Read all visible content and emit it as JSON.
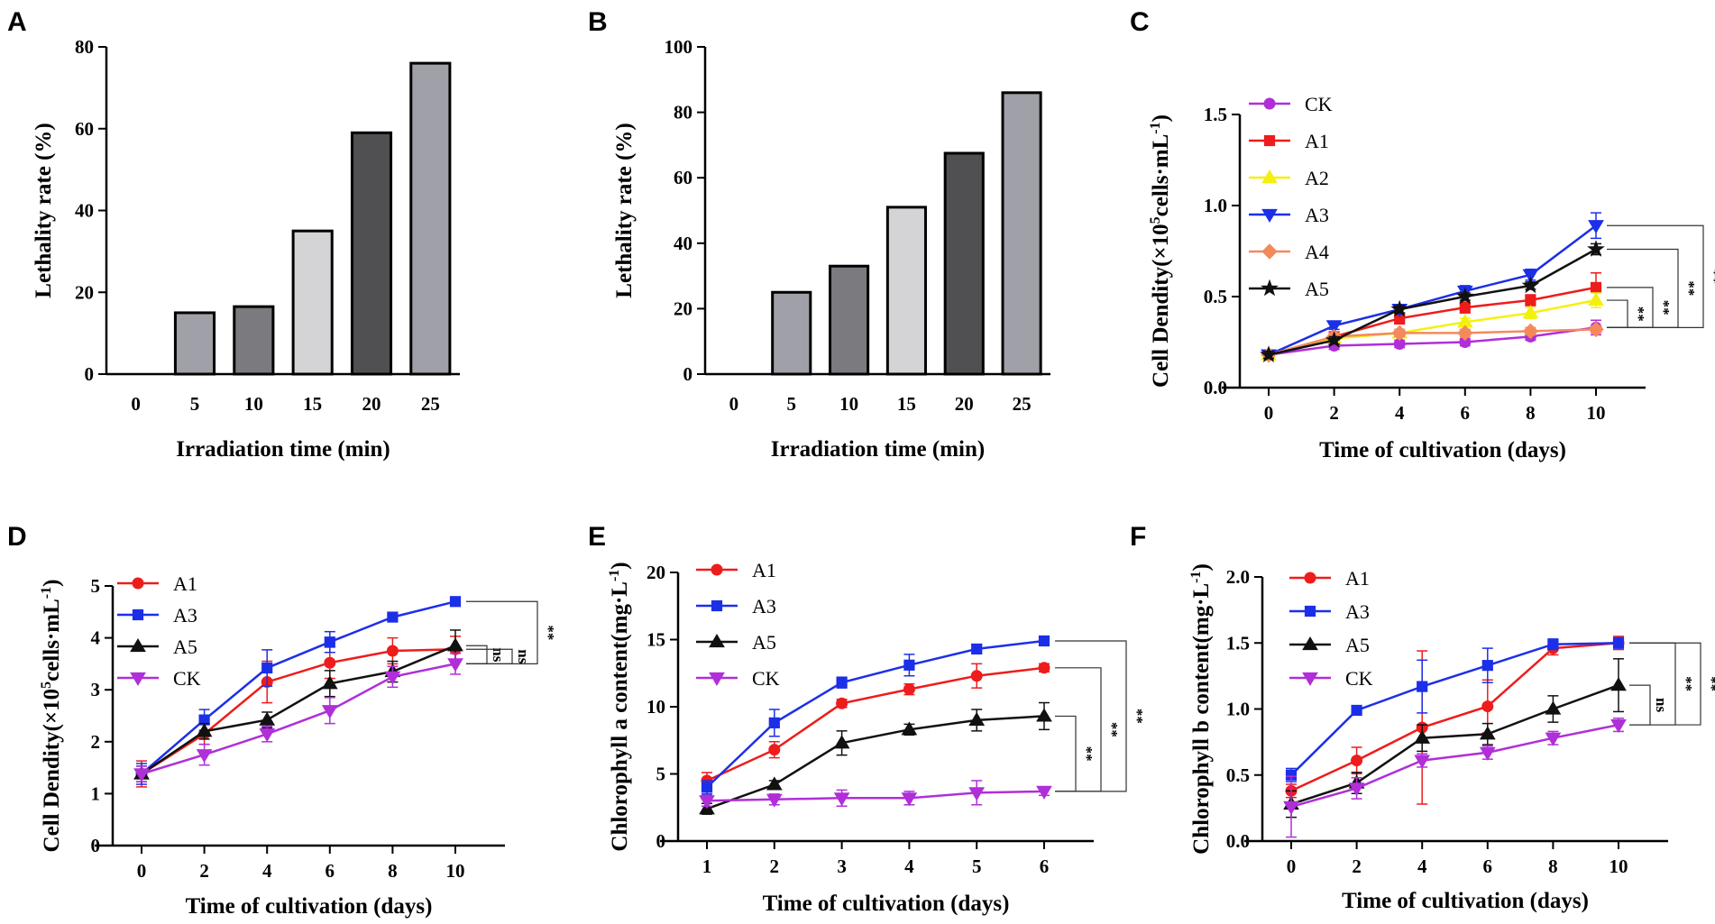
{
  "figure": {
    "panel_letters": [
      "A",
      "B",
      "C",
      "D",
      "E",
      "F"
    ]
  },
  "chart_data": [
    {
      "panel": "A",
      "type": "bar",
      "xlabel": "Irradiation time (min)",
      "ylabel": "Lethality rate (%)",
      "categories": [
        "0",
        "5",
        "10",
        "15",
        "20",
        "25"
      ],
      "values": [
        0,
        15,
        16.5,
        35,
        59,
        76
      ],
      "bar_colors": [
        "#a0a0a8",
        "#a0a0a8",
        "#7a7a7f",
        "#d4d4d6",
        "#505053",
        "#a0a0a8"
      ],
      "ylim": [
        0,
        80
      ],
      "yticks": [
        0,
        20,
        40,
        60,
        80
      ],
      "ytick_labels": [
        "0",
        "20",
        "40",
        "60",
        "80"
      ]
    },
    {
      "panel": "B",
      "type": "bar",
      "xlabel": "Irradiation time (min)",
      "ylabel": "Lethality rate (%)",
      "categories": [
        "0",
        "5",
        "10",
        "15",
        "20",
        "25"
      ],
      "values": [
        0,
        25,
        33,
        51,
        67.5,
        86
      ],
      "bar_colors": [
        "#a0a0a8",
        "#a0a0a8",
        "#7a7a7f",
        "#d4d4d6",
        "#505053",
        "#a0a0a8"
      ],
      "ylim": [
        0,
        100
      ],
      "yticks": [
        0,
        20,
        40,
        60,
        80,
        100
      ],
      "ytick_labels": [
        "0",
        "20",
        "40",
        "60",
        "80",
        "100"
      ]
    },
    {
      "panel": "C",
      "type": "line",
      "xlabel": "Time of cultivation (days)",
      "ylabel_prefix": "Cell Dendity(×10",
      "ylabel_exp": "5",
      "ylabel_mid": "cells·mL",
      "ylabel_exp2": "-1",
      "ylabel_suffix": ")",
      "x": [
        0,
        2,
        4,
        6,
        8,
        10
      ],
      "xlim": [
        0,
        10
      ],
      "xtick_labels": [
        "0",
        "2",
        "4",
        "6",
        "8",
        "10"
      ],
      "ylim": [
        0,
        1.5
      ],
      "yticks": [
        0,
        0.5,
        1.0,
        1.5
      ],
      "ytick_labels": [
        "0.0",
        "0.5",
        "1.0",
        "1.5"
      ],
      "series": [
        {
          "name": "CK",
          "color": "#b02fd8",
          "marker": "circle",
          "values": [
            0.18,
            0.23,
            0.24,
            0.25,
            0.28,
            0.33
          ],
          "errors": [
            0.02,
            0.02,
            0.02,
            0.02,
            0.02,
            0.04
          ]
        },
        {
          "name": "A1",
          "color": "#ee1c1c",
          "marker": "square",
          "values": [
            0.18,
            0.28,
            0.38,
            0.44,
            0.48,
            0.55
          ],
          "errors": [
            0.02,
            0.02,
            0.03,
            0.03,
            0.03,
            0.08
          ]
        },
        {
          "name": "A2",
          "color": "#f4f00e",
          "marker": "triangle-up",
          "values": [
            0.18,
            0.27,
            0.3,
            0.36,
            0.41,
            0.48
          ],
          "errors": [
            0.02,
            0.02,
            0.02,
            0.02,
            0.03,
            0.04
          ]
        },
        {
          "name": "A3",
          "color": "#1c2fe8",
          "marker": "triangle-down",
          "values": [
            0.18,
            0.34,
            0.43,
            0.53,
            0.62,
            0.89
          ],
          "errors": [
            0.02,
            0.02,
            0.02,
            0.03,
            0.03,
            0.07
          ]
        },
        {
          "name": "A4",
          "color": "#f4895c",
          "marker": "diamond",
          "values": [
            0.18,
            0.28,
            0.3,
            0.3,
            0.31,
            0.32
          ],
          "errors": [
            0.02,
            0.02,
            0.02,
            0.02,
            0.02,
            0.02
          ]
        },
        {
          "name": "A5",
          "color": "#111111",
          "marker": "star",
          "values": [
            0.18,
            0.26,
            0.43,
            0.5,
            0.56,
            0.76
          ],
          "errors": [
            0.02,
            0.02,
            0.02,
            0.02,
            0.02,
            0.03
          ]
        }
      ],
      "significance": [
        {
          "label": "**",
          "top_series": "A2",
          "bottom_series": "CK"
        },
        {
          "label": "**",
          "top_series": "A1",
          "bottom_series": "CK"
        },
        {
          "label": "**",
          "top_series": "A5",
          "bottom_series": "CK"
        },
        {
          "label": "**",
          "top_series": "A3",
          "bottom_series": "CK"
        }
      ]
    },
    {
      "panel": "D",
      "type": "line",
      "xlabel": "Time of cultivation (days)",
      "ylabel_prefix": "Cell Dendity(×10",
      "ylabel_exp": "5",
      "ylabel_mid": "cells·mL",
      "ylabel_exp2": "-1",
      "ylabel_suffix": ")",
      "x": [
        0,
        2,
        4,
        6,
        8,
        10
      ],
      "xlim": [
        0,
        10
      ],
      "xtick_labels": [
        "0",
        "2",
        "4",
        "6",
        "8",
        "10"
      ],
      "ylim": [
        0,
        5
      ],
      "yticks": [
        0,
        1,
        2,
        3,
        4,
        5
      ],
      "ytick_labels": [
        "0",
        "1",
        "2",
        "3",
        "4",
        "5"
      ],
      "series": [
        {
          "name": "A1",
          "color": "#ee1c1c",
          "marker": "circle",
          "values": [
            1.38,
            2.15,
            3.15,
            3.52,
            3.75,
            3.78
          ],
          "errors": [
            0.25,
            0.2,
            0.4,
            0.3,
            0.25,
            0.25
          ]
        },
        {
          "name": "A3",
          "color": "#1c2fe8",
          "marker": "square",
          "values": [
            1.38,
            2.42,
            3.42,
            3.92,
            4.4,
            4.7
          ],
          "errors": [
            0.2,
            0.2,
            0.35,
            0.2,
            0.05,
            0.05
          ]
        },
        {
          "name": "A5",
          "color": "#111111",
          "marker": "triangle-up",
          "values": [
            1.38,
            2.2,
            2.42,
            3.12,
            3.35,
            3.85
          ],
          "errors": [
            0.15,
            0.15,
            0.15,
            0.25,
            0.2,
            0.3
          ]
        },
        {
          "name": "CK",
          "color": "#b02fd8",
          "marker": "triangle-down",
          "values": [
            1.38,
            1.75,
            2.15,
            2.6,
            3.25,
            3.5
          ],
          "errors": [
            0.15,
            0.2,
            0.15,
            0.25,
            0.2,
            0.2
          ]
        }
      ],
      "significance": [
        {
          "label": "ns",
          "top_series": "A5",
          "bottom_series": "CK"
        },
        {
          "label": "ns",
          "top_series": "A1",
          "bottom_series": "CK"
        },
        {
          "label": "**",
          "top_series": "A3",
          "bottom_series": "CK"
        }
      ]
    },
    {
      "panel": "E",
      "type": "line",
      "xlabel": "Time of cultivation (days)",
      "ylabel_prefix": "Chlorophyll a content(mg·L",
      "ylabel_exp": "-1",
      "ylabel_suffix": ")",
      "x": [
        1,
        2,
        3,
        4,
        5,
        6
      ],
      "xlim": [
        1,
        6
      ],
      "xtick_labels": [
        "1",
        "2",
        "3",
        "4",
        "5",
        "6"
      ],
      "ylim": [
        0,
        20
      ],
      "yticks": [
        0,
        5,
        10,
        15,
        20
      ],
      "ytick_labels": [
        "0",
        "5",
        "10",
        "15",
        "20"
      ],
      "series": [
        {
          "name": "A1",
          "color": "#ee1c1c",
          "marker": "circle",
          "values": [
            4.5,
            6.8,
            10.25,
            11.3,
            12.3,
            12.9
          ],
          "errors": [
            0.6,
            0.6,
            0.3,
            0.4,
            0.9,
            0.3
          ]
        },
        {
          "name": "A3",
          "color": "#1c2fe8",
          "marker": "square",
          "values": [
            4.0,
            8.8,
            11.8,
            13.1,
            14.3,
            14.9
          ],
          "errors": [
            0.5,
            1.0,
            0.4,
            0.8,
            0.3,
            0.2
          ]
        },
        {
          "name": "A5",
          "color": "#111111",
          "marker": "triangle-up",
          "values": [
            2.4,
            4.2,
            7.3,
            8.3,
            9.0,
            9.3
          ],
          "errors": [
            0.4,
            0.3,
            0.9,
            0.4,
            0.8,
            1.0
          ]
        },
        {
          "name": "CK",
          "color": "#b02fd8",
          "marker": "triangle-down",
          "values": [
            3.0,
            3.1,
            3.2,
            3.2,
            3.6,
            3.7
          ],
          "errors": [
            0.4,
            0.4,
            0.6,
            0.5,
            0.9,
            0.3
          ]
        }
      ],
      "significance": [
        {
          "label": "**",
          "top_series": "A5",
          "bottom_series": "CK"
        },
        {
          "label": "**",
          "top_series": "A1",
          "bottom_series": "CK"
        },
        {
          "label": "**",
          "top_series": "A3",
          "bottom_series": "CK"
        }
      ]
    },
    {
      "panel": "F",
      "type": "line",
      "xlabel": "Time of cultivation (days)",
      "ylabel_prefix": "Chlorophyll b content(mg·L",
      "ylabel_exp": "-1",
      "ylabel_suffix": ")",
      "x": [
        0,
        2,
        4,
        6,
        8,
        10
      ],
      "xlim": [
        0,
        10
      ],
      "xtick_labels": [
        "0",
        "2",
        "4",
        "6",
        "8",
        "10"
      ],
      "ylim": [
        0,
        2.0
      ],
      "yticks": [
        0,
        0.5,
        1.0,
        1.5,
        2.0
      ],
      "ytick_labels": [
        "0.0",
        "0.5",
        "1.0",
        "1.5",
        "2.0"
      ],
      "series": [
        {
          "name": "A1",
          "color": "#ee1c1c",
          "marker": "circle",
          "values": [
            0.38,
            0.61,
            0.86,
            1.02,
            1.46,
            1.5
          ],
          "errors": [
            0.05,
            0.1,
            0.58,
            0.2,
            0.05,
            0.05
          ]
        },
        {
          "name": "A3",
          "color": "#1c2fe8",
          "marker": "square",
          "values": [
            0.5,
            0.99,
            1.17,
            1.33,
            1.49,
            1.5
          ],
          "errors": [
            0.05,
            0.02,
            0.2,
            0.13,
            0.04,
            0.04
          ]
        },
        {
          "name": "A5",
          "color": "#111111",
          "marker": "triangle-up",
          "values": [
            0.28,
            0.44,
            0.78,
            0.81,
            1.0,
            1.18
          ],
          "errors": [
            0.1,
            0.08,
            0.1,
            0.08,
            0.1,
            0.2
          ]
        },
        {
          "name": "CK",
          "color": "#b02fd8",
          "marker": "triangle-down",
          "values": [
            0.26,
            0.4,
            0.61,
            0.67,
            0.78,
            0.88
          ],
          "errors": [
            0.23,
            0.08,
            0.05,
            0.05,
            0.05,
            0.05
          ]
        }
      ],
      "significance": [
        {
          "label": "ns",
          "top_series": "A5",
          "bottom_series": "CK"
        },
        {
          "label": "**",
          "top_series": "A1",
          "bottom_series": "CK"
        },
        {
          "label": "**",
          "top_series": "A3",
          "bottom_series": "CK"
        }
      ]
    }
  ]
}
